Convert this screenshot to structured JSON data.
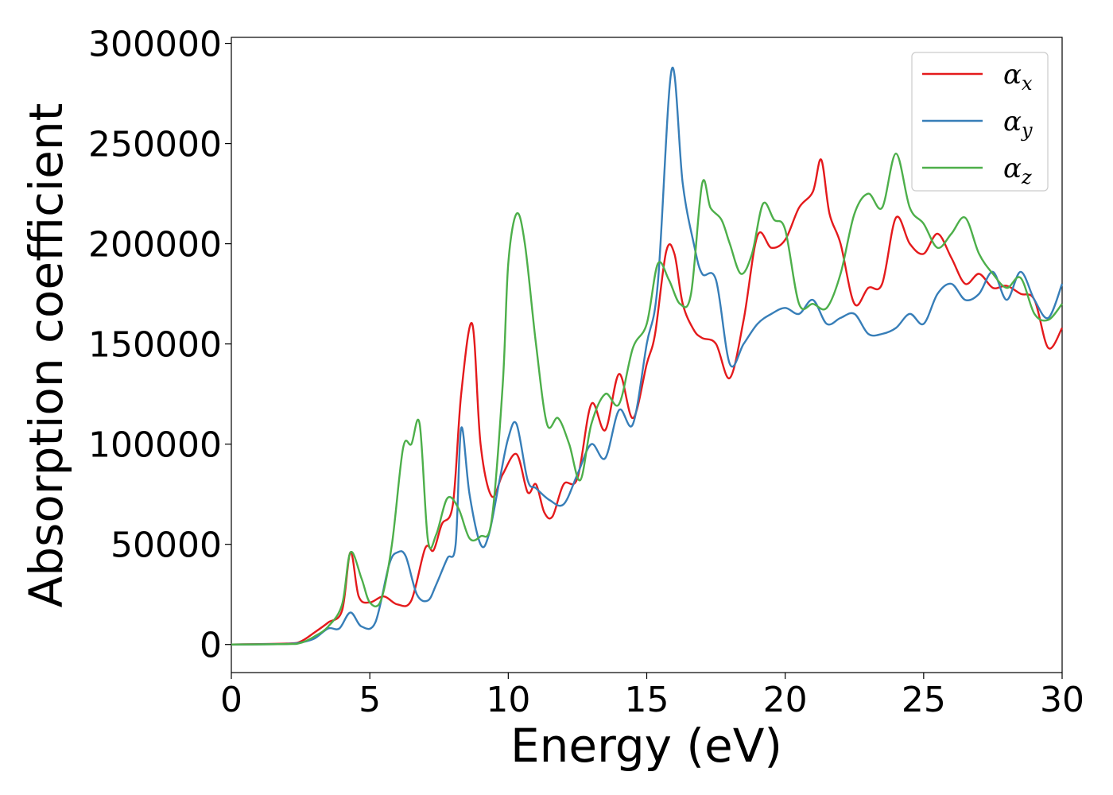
{
  "chart_data": {
    "type": "line",
    "xlabel": "Energy (eV)",
    "ylabel": "Absorption coefficient",
    "xlim": [
      0,
      30
    ],
    "ylim": [
      -14000,
      303000
    ],
    "xticks": [
      0,
      5,
      10,
      15,
      20,
      25,
      30
    ],
    "xtick_labels": [
      "0",
      "5",
      "10",
      "15",
      "20",
      "25",
      "30"
    ],
    "yticks": [
      0,
      50000,
      100000,
      150000,
      200000,
      250000,
      300000
    ],
    "ytick_labels": [
      "0",
      "50000",
      "100000",
      "150000",
      "200000",
      "250000",
      "300000"
    ],
    "grid": false,
    "legend_position": "top-right",
    "series": [
      {
        "name": "αx",
        "legend_base": "α",
        "legend_sub": "x",
        "color": "#e41a1c",
        "x": [
          0,
          2,
          2.5,
          3,
          3.5,
          4.0,
          4.3,
          4.6,
          5.0,
          5.5,
          6.0,
          6.5,
          7.0,
          7.3,
          7.6,
          8.0,
          8.3,
          8.7,
          9.0,
          9.4,
          9.8,
          10.3,
          10.7,
          11.0,
          11.3,
          11.6,
          12.0,
          12.5,
          13.0,
          13.5,
          14.0,
          14.5,
          15.0,
          15.3,
          15.7,
          16.0,
          16.3,
          16.7,
          17.0,
          17.5,
          18.0,
          18.5,
          19.0,
          19.5,
          20.0,
          20.5,
          21.0,
          21.3,
          21.6,
          22.0,
          22.5,
          23.0,
          23.5,
          24.0,
          24.5,
          25.0,
          25.5,
          26.0,
          26.5,
          27.0,
          27.5,
          28.0,
          28.5,
          29.0,
          29.5,
          30.0
        ],
        "y": [
          0,
          500,
          1500,
          6000,
          11000,
          17000,
          46000,
          24000,
          21000,
          24000,
          20000,
          22000,
          48000,
          47000,
          60000,
          70000,
          125000,
          160000,
          100000,
          74000,
          85000,
          95000,
          76000,
          80000,
          66000,
          64000,
          80000,
          83000,
          120000,
          107000,
          135000,
          113000,
          140000,
          155000,
          196000,
          195000,
          170000,
          157000,
          153000,
          150000,
          133000,
          162000,
          204000,
          198000,
          202000,
          218000,
          226000,
          242000,
          215000,
          200000,
          170000,
          178000,
          180000,
          213000,
          200000,
          195000,
          205000,
          193000,
          180000,
          185000,
          178000,
          179000,
          175000,
          172000,
          148000,
          158000
        ]
      },
      {
        "name": "αy",
        "legend_base": "α",
        "legend_sub": "y",
        "color": "#377eb8",
        "x": [
          0,
          2,
          2.5,
          3,
          3.5,
          3.9,
          4.3,
          4.7,
          5.2,
          5.7,
          6.0,
          6.3,
          6.7,
          7.1,
          7.4,
          7.8,
          8.1,
          8.3,
          8.6,
          9.0,
          9.3,
          9.7,
          10.0,
          10.3,
          10.7,
          11.0,
          11.5,
          12.0,
          12.5,
          13.0,
          13.5,
          14.0,
          14.5,
          15.0,
          15.4,
          15.9,
          16.3,
          16.7,
          17.0,
          17.5,
          18.0,
          18.5,
          19.0,
          19.5,
          20.0,
          20.5,
          21.0,
          21.5,
          22.0,
          22.5,
          23.0,
          23.5,
          24.0,
          24.5,
          25.0,
          25.5,
          26.0,
          26.5,
          27.0,
          27.5,
          28.0,
          28.5,
          29.0,
          29.5,
          30.0
        ],
        "y": [
          0,
          300,
          1000,
          3000,
          8000,
          8000,
          16000,
          9000,
          11000,
          40000,
          46000,
          44000,
          25000,
          22000,
          30000,
          43000,
          50000,
          108000,
          75000,
          50000,
          55000,
          83000,
          103000,
          110000,
          82000,
          78000,
          72000,
          70000,
          85000,
          100000,
          93000,
          117000,
          110000,
          150000,
          180000,
          287000,
          230000,
          200000,
          185000,
          182000,
          140000,
          150000,
          160000,
          165000,
          168000,
          165000,
          172000,
          160000,
          163000,
          165000,
          155000,
          155000,
          158000,
          165000,
          160000,
          175000,
          180000,
          172000,
          175000,
          186000,
          172000,
          186000,
          172000,
          163000,
          180000
        ]
      },
      {
        "name": "αz",
        "legend_base": "α",
        "legend_sub": "z",
        "color": "#4daf4a",
        "x": [
          0,
          2,
          2.5,
          3,
          3.5,
          4.0,
          4.3,
          4.7,
          5.0,
          5.4,
          5.8,
          6.2,
          6.5,
          6.8,
          7.1,
          7.4,
          7.8,
          8.2,
          8.6,
          9.0,
          9.4,
          9.8,
          10.0,
          10.3,
          10.6,
          11.0,
          11.4,
          11.8,
          12.2,
          12.6,
          13.0,
          13.5,
          14.0,
          14.5,
          15.0,
          15.4,
          15.8,
          16.2,
          16.6,
          17.0,
          17.3,
          17.7,
          18.0,
          18.4,
          18.8,
          19.2,
          19.6,
          20.0,
          20.5,
          21.0,
          21.5,
          22.0,
          22.5,
          23.0,
          23.5,
          24.0,
          24.5,
          25.0,
          25.5,
          26.0,
          26.5,
          27.0,
          27.5,
          28.0,
          28.5,
          29.0,
          29.5,
          30.0
        ],
        "y": [
          0,
          200,
          800,
          4000,
          9000,
          20000,
          46000,
          33000,
          21000,
          22000,
          50000,
          98000,
          100000,
          110000,
          52000,
          55000,
          73000,
          68000,
          53000,
          54000,
          62000,
          130000,
          190000,
          215000,
          200000,
          150000,
          110000,
          113000,
          100000,
          82000,
          110000,
          125000,
          120000,
          148000,
          160000,
          190000,
          182000,
          170000,
          175000,
          230000,
          218000,
          212000,
          200000,
          185000,
          195000,
          220000,
          212000,
          207000,
          170000,
          170000,
          168000,
          185000,
          215000,
          225000,
          218000,
          245000,
          218000,
          210000,
          198000,
          205000,
          213000,
          195000,
          185000,
          178000,
          183000,
          165000,
          162000,
          170000
        ]
      }
    ]
  }
}
